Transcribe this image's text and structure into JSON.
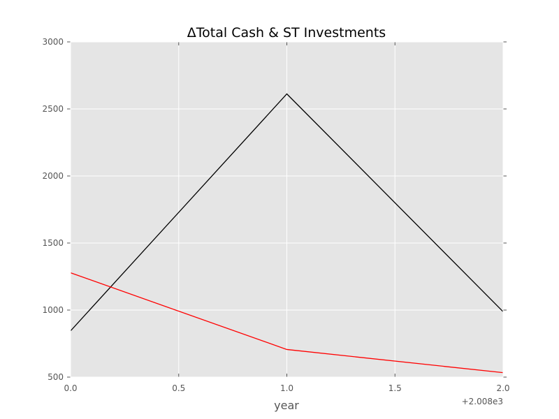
{
  "chart_data": {
    "type": "line",
    "title": "ΔTotal Cash & ST Investments",
    "xlabel": "year",
    "ylabel": "",
    "x_offset_label": "+2.008e3",
    "x": [
      0.0,
      1.0,
      2.0
    ],
    "xlim": [
      0.0,
      2.0
    ],
    "ylim": [
      500,
      3000
    ],
    "x_ticks": [
      0.0,
      0.5,
      1.0,
      1.5,
      2.0
    ],
    "x_tick_labels": [
      "0.0",
      "0.5",
      "1.0",
      "1.5",
      "2.0"
    ],
    "y_ticks": [
      500,
      1000,
      1500,
      2000,
      2500,
      3000
    ],
    "y_tick_labels": [
      "500",
      "1000",
      "1500",
      "2000",
      "2500",
      "3000"
    ],
    "grid": true,
    "background": "#e5e5e5",
    "series": [
      {
        "values": [
          845,
          2612,
          988
        ],
        "color": "#000000"
      },
      {
        "values": [
          1278,
          706,
          533
        ],
        "color": "#ff0000"
      }
    ]
  }
}
